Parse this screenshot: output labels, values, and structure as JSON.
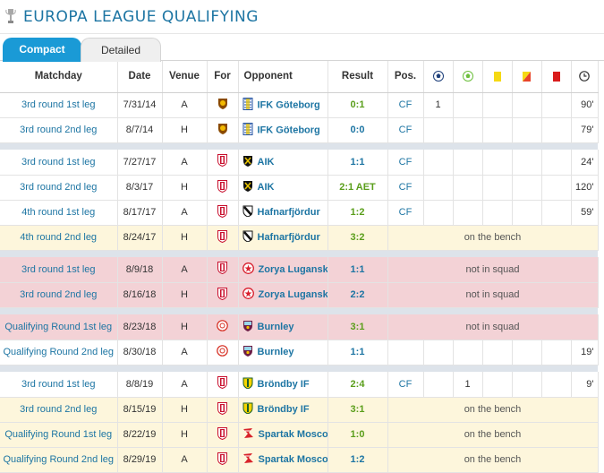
{
  "header": {
    "title": "EUROPA LEAGUE QUALIFYING",
    "logo_icon": "europa-league-trophy-icon"
  },
  "tabs": [
    {
      "label": "Compact",
      "active": true
    },
    {
      "label": "Detailed",
      "active": false
    }
  ],
  "columns": {
    "matchday": "Matchday",
    "date": "Date",
    "venue": "Venue",
    "for": "For",
    "opponent": "Opponent",
    "result": "Result",
    "pos": "Pos.",
    "goals_icon": "goal-ball-icon",
    "assists_icon": "assist-ball-icon",
    "yellow_icon": "yellow-card-icon",
    "second_yellow_icon": "second-yellow-card-icon",
    "red_icon": "red-card-icon",
    "minutes_icon": "clock-icon"
  },
  "rows": [
    {
      "type": "match",
      "matchday": "3rd round 1st leg",
      "date": "7/31/14",
      "venue": "A",
      "for_icon": "club-crest-yellow-icon",
      "opponent": "IFK Göteborg",
      "opp_icon": "ifk-goteborg-crest-icon",
      "result": "0:1",
      "result_class": "win",
      "pos": "CF",
      "goals": "1",
      "assists": "",
      "minutes": "90'"
    },
    {
      "type": "match",
      "matchday": "3rd round 2nd leg",
      "date": "8/7/14",
      "venue": "H",
      "for_icon": "club-crest-yellow-icon",
      "opponent": "IFK Göteborg",
      "opp_icon": "ifk-goteborg-crest-icon",
      "result": "0:0",
      "result_class": "draw",
      "pos": "CF",
      "goals": "",
      "assists": "",
      "minutes": "79'"
    },
    {
      "type": "sep"
    },
    {
      "type": "match",
      "matchday": "3rd round 1st leg",
      "date": "7/27/17",
      "venue": "A",
      "for_icon": "sc-braga-crest-icon",
      "opponent": "AIK",
      "opp_icon": "aik-crest-icon",
      "result": "1:1",
      "result_class": "draw",
      "pos": "CF",
      "goals": "",
      "assists": "",
      "minutes": "24'"
    },
    {
      "type": "match",
      "matchday": "3rd round 2nd leg",
      "date": "8/3/17",
      "venue": "H",
      "for_icon": "sc-braga-crest-icon",
      "opponent": "AIK",
      "opp_icon": "aik-crest-icon",
      "result": "2:1 AET",
      "result_class": "win",
      "pos": "CF",
      "goals": "",
      "assists": "",
      "minutes": "120'"
    },
    {
      "type": "match",
      "matchday": "4th round 1st leg",
      "date": "8/17/17",
      "venue": "A",
      "for_icon": "sc-braga-crest-icon",
      "opponent": "Hafnarfjördur",
      "opp_icon": "hafnarfjordur-crest-icon",
      "result": "1:2",
      "result_class": "win",
      "pos": "CF",
      "goals": "",
      "assists": "",
      "minutes": "59'"
    },
    {
      "type": "bench",
      "matchday": "4th round 2nd leg",
      "date": "8/24/17",
      "venue": "H",
      "for_icon": "sc-braga-crest-icon",
      "opponent": "Hafnarfjördur",
      "opp_icon": "hafnarfjordur-crest-icon",
      "result": "3:2",
      "result_class": "win",
      "note": "on the bench"
    },
    {
      "type": "sep"
    },
    {
      "type": "squad",
      "matchday": "3rd round 1st leg",
      "date": "8/9/18",
      "venue": "A",
      "for_icon": "sc-braga-crest-icon",
      "opponent": "Zorya Lugansk",
      "opp_icon": "zorya-lugansk-crest-icon",
      "result": "1:1",
      "result_class": "draw",
      "note": "not in squad"
    },
    {
      "type": "squad",
      "matchday": "3rd round 2nd leg",
      "date": "8/16/18",
      "venue": "H",
      "for_icon": "sc-braga-crest-icon",
      "opponent": "Zorya Lugansk",
      "opp_icon": "zorya-lugansk-crest-icon",
      "result": "2:2",
      "result_class": "draw",
      "note": "not in squad"
    },
    {
      "type": "sep"
    },
    {
      "type": "squad",
      "matchday": "Qualifying Round 1st leg",
      "date": "8/23/18",
      "venue": "H",
      "for_icon": "aberdeen-crest-icon",
      "opponent": "Burnley",
      "opp_icon": "burnley-crest-icon",
      "result": "3:1",
      "result_class": "win",
      "note": "not in squad"
    },
    {
      "type": "match",
      "matchday": "Qualifying Round 2nd leg",
      "date": "8/30/18",
      "venue": "A",
      "for_icon": "aberdeen-crest-icon",
      "opponent": "Burnley",
      "opp_icon": "burnley-crest-icon",
      "result": "1:1",
      "result_class": "draw",
      "pos": "",
      "goals": "",
      "assists": "",
      "minutes": "19'"
    },
    {
      "type": "sep"
    },
    {
      "type": "match",
      "matchday": "3rd round 1st leg",
      "date": "8/8/19",
      "venue": "A",
      "for_icon": "sc-braga-crest-icon",
      "opponent": "Bröndby IF",
      "opp_icon": "brondby-crest-icon",
      "result": "2:4",
      "result_class": "win",
      "pos": "CF",
      "goals": "",
      "assists": "1",
      "minutes": "9'"
    },
    {
      "type": "bench",
      "matchday": "3rd round 2nd leg",
      "date": "8/15/19",
      "venue": "H",
      "for_icon": "sc-braga-crest-icon",
      "opponent": "Bröndby IF",
      "opp_icon": "brondby-crest-icon",
      "result": "3:1",
      "result_class": "win",
      "note": "on the bench"
    },
    {
      "type": "bench",
      "matchday": "Qualifying Round 1st leg",
      "date": "8/22/19",
      "venue": "H",
      "for_icon": "sc-braga-crest-icon",
      "opponent": "Spartak Moscow",
      "opp_icon": "spartak-moscow-crest-icon",
      "result": "1:0",
      "result_class": "win",
      "note": "on the bench"
    },
    {
      "type": "bench",
      "matchday": "Qualifying Round 2nd leg",
      "date": "8/29/19",
      "venue": "A",
      "for_icon": "sc-braga-crest-icon",
      "opponent": "Spartak Moscow",
      "opp_icon": "spartak-moscow-crest-icon",
      "result": "1:2",
      "result_class": "draw",
      "note": "on the bench"
    }
  ]
}
